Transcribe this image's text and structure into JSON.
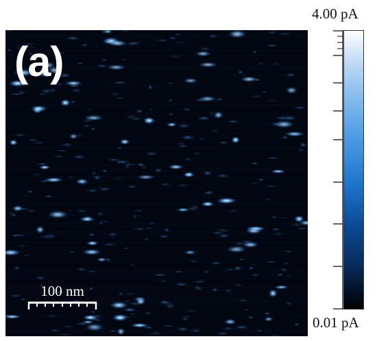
{
  "panel_label": "(a)",
  "scale_bar": {
    "label": "100 nm"
  },
  "colorbar": {
    "max_label": "4.00 pA",
    "min_label": "0.01 pA",
    "colors": [
      "#000000",
      "#0b4a96",
      "#1f74cc",
      "#4e9ce6",
      "#ffffff"
    ]
  },
  "image": {
    "background": "#01040d",
    "spot_color": "#5aa8f0",
    "highlight_color": "#e6f4ff"
  }
}
